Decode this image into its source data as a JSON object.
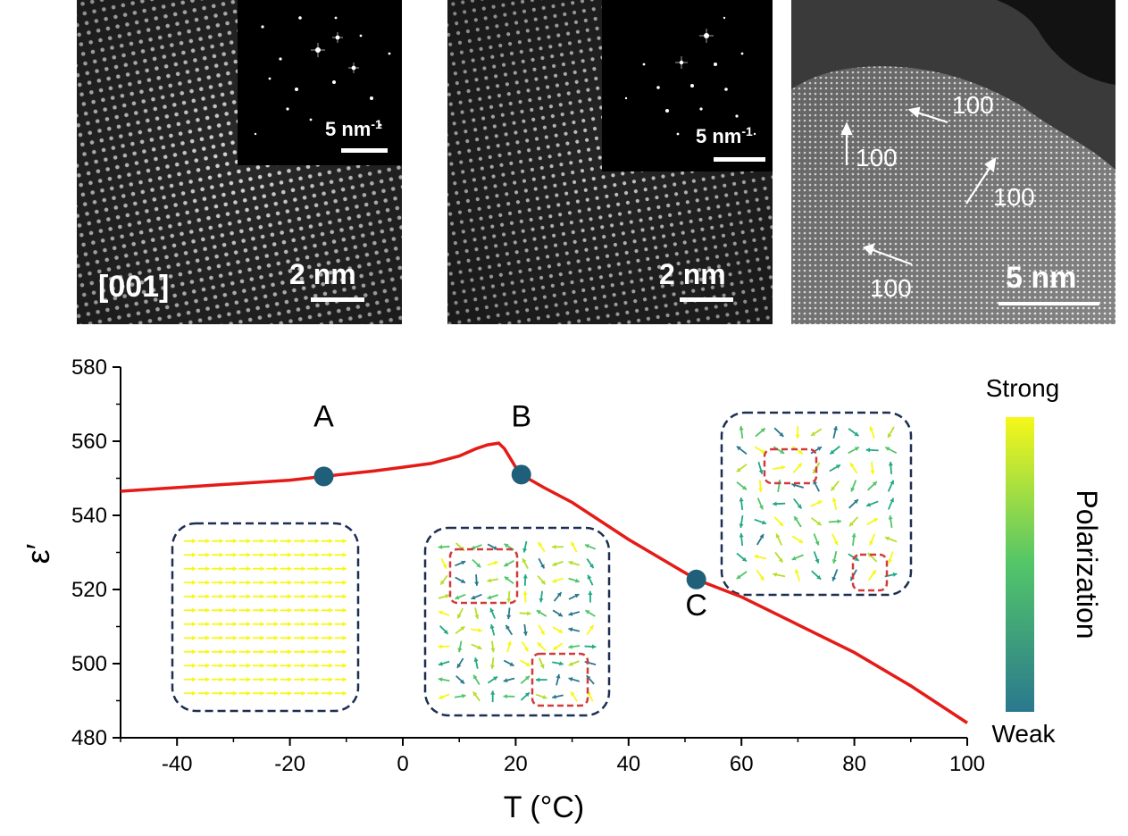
{
  "panels": {
    "left": {
      "zone_axis": "[001]",
      "scale_bar": "2 nm",
      "fft_scale_bar": "5 nm",
      "fft_scale_sup": "-1"
    },
    "middle": {
      "scale_bar": "2 nm",
      "fft_scale_bar": "5 nm",
      "fft_scale_sup": "-1"
    },
    "right": {
      "scale_bar": "5 nm",
      "direction_labels": [
        "100",
        "100",
        "100",
        "100"
      ]
    }
  },
  "colorbar": {
    "title": "Polarization",
    "top_label": "Strong",
    "bottom_label": "Weak",
    "top_color": "#f7f719",
    "mid_color": "#52c569",
    "bottom_color": "#2a788e"
  },
  "colors": {
    "curve": "#e41b17",
    "point_marker": "#1f5f7a",
    "box_border": "#1c2e52",
    "highlight_box": "#d23a3a"
  },
  "chart_data": {
    "type": "line",
    "title": "",
    "xlabel": "T (°C)",
    "ylabel": "ε′",
    "xlim": [
      -50,
      100
    ],
    "ylim": [
      480,
      580
    ],
    "x_ticks": [
      -40,
      -20,
      0,
      20,
      40,
      60,
      80,
      100
    ],
    "y_ticks": [
      480,
      500,
      520,
      540,
      560,
      580
    ],
    "grid": false,
    "series": [
      {
        "x": [
          -50,
          -40,
          -30,
          -20,
          -14,
          -5,
          0,
          5,
          10,
          13,
          15,
          17,
          18,
          19,
          20,
          21,
          25,
          30,
          40,
          50,
          52,
          60,
          70,
          80,
          90,
          100
        ],
        "y": [
          546.5,
          547.5,
          548.5,
          549.5,
          550.5,
          552.0,
          553.0,
          554.0,
          556.0,
          558.0,
          559.0,
          559.5,
          558.0,
          555.5,
          553.0,
          551.0,
          547.5,
          543.5,
          533.5,
          524.5,
          522.7,
          518.0,
          510.5,
          503.0,
          494.0,
          484.0
        ]
      }
    ],
    "points": [
      {
        "label": "A",
        "x": -14,
        "y": 550.5
      },
      {
        "label": "B",
        "x": 21,
        "y": 551.0
      },
      {
        "label": "C",
        "x": 52,
        "y": 522.7
      }
    ]
  }
}
